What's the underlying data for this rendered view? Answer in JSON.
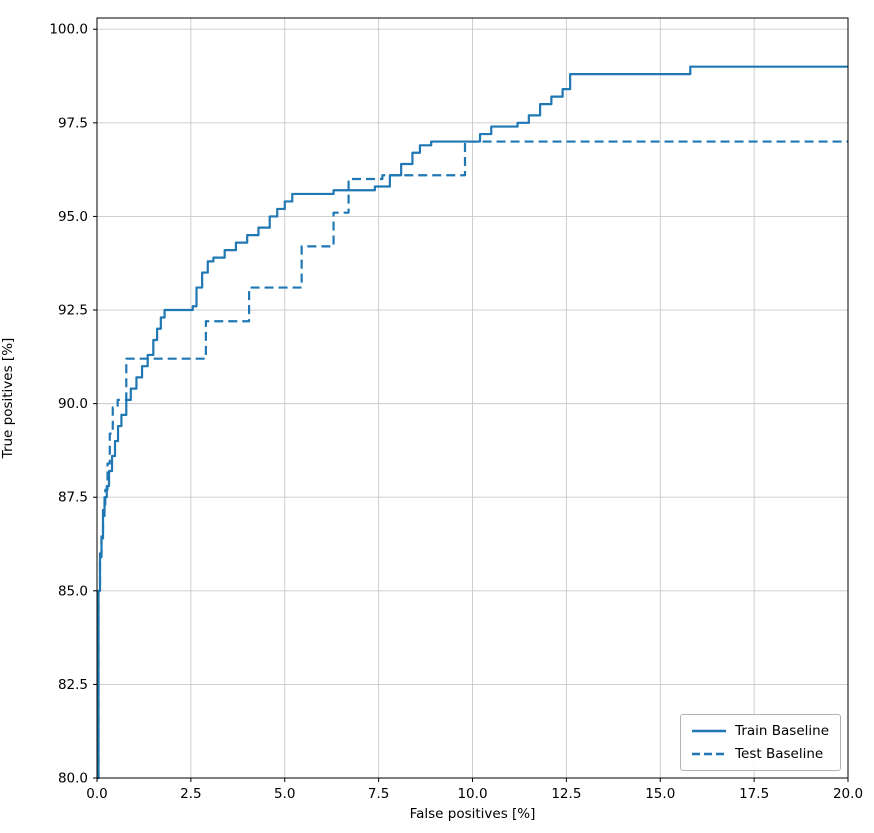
{
  "chart_data": {
    "type": "line",
    "title": "",
    "xlabel": "False positives [%]",
    "ylabel": "True positives [%]",
    "xlim": [
      0,
      20
    ],
    "ylim": [
      80,
      100.3
    ],
    "xticks": [
      0,
      2.5,
      5,
      7.5,
      10,
      12.5,
      15,
      17.5,
      20
    ],
    "xtick_labels": [
      "0.0",
      "2.5",
      "5.0",
      "7.5",
      "10.0",
      "12.5",
      "15.0",
      "17.5",
      "20.0"
    ],
    "yticks": [
      80,
      82.5,
      85,
      87.5,
      90,
      92.5,
      95,
      97.5,
      100
    ],
    "ytick_labels": [
      "80.0",
      "82.5",
      "85.0",
      "87.5",
      "90.0",
      "92.5",
      "95.0",
      "97.5",
      "100.0"
    ],
    "grid": true,
    "legend_position": "lower right",
    "line_color": "#1f77b4",
    "grid_color": "#c9c9c9",
    "axis_color": "#000000",
    "series": [
      {
        "name": "Train Baseline",
        "style": "solid",
        "drawstyle": "steps-post",
        "x": [
          0,
          0.04,
          0.08,
          0.12,
          0.16,
          0.2,
          0.26,
          0.32,
          0.4,
          0.48,
          0.56,
          0.65,
          0.78,
          0.9,
          1.05,
          1.2,
          1.35,
          1.5,
          1.6,
          1.7,
          1.8,
          2.55,
          2.65,
          2.8,
          2.95,
          3.1,
          3.4,
          3.7,
          4.0,
          4.3,
          4.6,
          4.8,
          5.0,
          5.2,
          6.3,
          7.4,
          7.8,
          8.1,
          8.4,
          8.6,
          8.9,
          10.2,
          10.5,
          11.2,
          11.5,
          11.8,
          12.1,
          12.4,
          12.6,
          15.8,
          20.0
        ],
        "y": [
          80.0,
          85.0,
          85.9,
          86.4,
          87.0,
          87.5,
          87.8,
          88.2,
          88.6,
          89.0,
          89.4,
          89.7,
          90.1,
          90.4,
          90.7,
          91.0,
          91.3,
          91.7,
          92.0,
          92.3,
          92.5,
          92.6,
          93.1,
          93.5,
          93.8,
          93.9,
          94.1,
          94.3,
          94.5,
          94.7,
          95.0,
          95.2,
          95.4,
          95.6,
          95.7,
          95.8,
          96.1,
          96.4,
          96.7,
          96.9,
          97.0,
          97.2,
          97.4,
          97.5,
          97.7,
          98.0,
          98.2,
          98.4,
          98.8,
          99.0,
          99.0
        ]
      },
      {
        "name": "Test Baseline",
        "style": "dashed",
        "drawstyle": "steps-post",
        "x": [
          0,
          0.04,
          0.08,
          0.12,
          0.16,
          0.22,
          0.28,
          0.34,
          0.42,
          0.55,
          0.78,
          2.9,
          4.05,
          5.45,
          6.3,
          6.7,
          7.6,
          9.8,
          20.0
        ],
        "y": [
          80.0,
          85.0,
          86.0,
          86.6,
          87.3,
          87.7,
          88.4,
          89.2,
          89.9,
          90.1,
          91.2,
          92.2,
          93.1,
          94.2,
          95.1,
          96.0,
          96.1,
          97.0,
          97.0
        ]
      }
    ]
  }
}
